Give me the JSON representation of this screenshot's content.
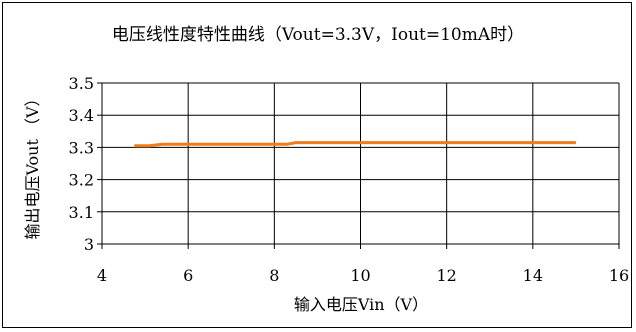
{
  "chart_data": {
    "type": "line",
    "title": "电压线性度特性曲线（Vout=3.3V，Iout=10mA时）",
    "xlabel": "输入电压Vin（V）",
    "ylabel": "输出电压Vout （V）",
    "xlim": [
      4,
      16
    ],
    "ylim": [
      3.0,
      3.5
    ],
    "x_ticks": [
      4,
      6,
      8,
      10,
      12,
      14,
      16
    ],
    "x_tick_labels": [
      "4",
      "6",
      "8",
      "10",
      "12",
      "14",
      "16"
    ],
    "y_ticks": [
      3.0,
      3.1,
      3.2,
      3.3,
      3.4,
      3.5
    ],
    "y_tick_labels": [
      "3",
      "3.1",
      "3.2",
      "3.3",
      "3.4",
      "3.5"
    ],
    "grid": true,
    "legend": "none",
    "series_color": "#f07b1c",
    "series": [
      {
        "x": [
          4.75,
          5.1,
          5.4,
          6.0,
          7.0,
          8.0,
          8.3,
          8.5,
          10.0,
          12.0,
          14.0,
          15.0
        ],
        "y": [
          3.305,
          3.305,
          3.31,
          3.31,
          3.31,
          3.31,
          3.31,
          3.315,
          3.315,
          3.315,
          3.315,
          3.315
        ]
      }
    ]
  }
}
